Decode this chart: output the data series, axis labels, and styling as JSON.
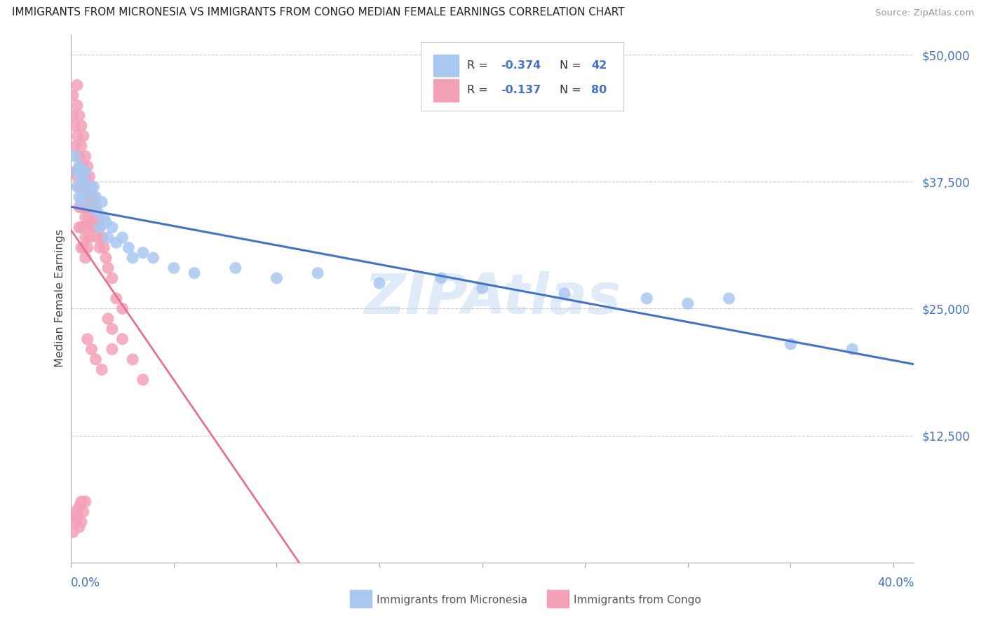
{
  "title": "IMMIGRANTS FROM MICRONESIA VS IMMIGRANTS FROM CONGO MEDIAN FEMALE EARNINGS CORRELATION CHART",
  "source": "Source: ZipAtlas.com",
  "ylabel": "Median Female Earnings",
  "xlim": [
    0,
    0.41
  ],
  "ylim": [
    0,
    52000
  ],
  "yticks": [
    0,
    12500,
    25000,
    37500,
    50000
  ],
  "ytick_labels": [
    "",
    "$12,500",
    "$25,000",
    "$37,500",
    "$50,000"
  ],
  "micronesia_color": "#a8c8f0",
  "congo_color": "#f4a0b8",
  "micro_line_color": "#4472c4",
  "congo_line_color": "#e87090",
  "watermark": "ZIPAtlas",
  "micro_x": [
    0.002,
    0.003,
    0.003,
    0.004,
    0.004,
    0.005,
    0.005,
    0.006,
    0.006,
    0.007,
    0.008,
    0.009,
    0.01,
    0.011,
    0.012,
    0.013,
    0.014,
    0.015,
    0.016,
    0.017,
    0.018,
    0.02,
    0.022,
    0.025,
    0.028,
    0.03,
    0.035,
    0.04,
    0.05,
    0.06,
    0.08,
    0.1,
    0.12,
    0.15,
    0.18,
    0.2,
    0.24,
    0.28,
    0.3,
    0.32,
    0.35,
    0.38
  ],
  "micro_y": [
    40000,
    38500,
    37000,
    39000,
    36000,
    38000,
    35500,
    37500,
    36000,
    38500,
    37000,
    36500,
    35000,
    37000,
    36000,
    34500,
    33000,
    35500,
    34000,
    33500,
    32000,
    33000,
    31500,
    32000,
    31000,
    30000,
    30500,
    30000,
    29000,
    28500,
    29000,
    28000,
    28500,
    27500,
    28000,
    27000,
    26500,
    26000,
    25500,
    26000,
    21500,
    21000
  ],
  "congo_x": [
    0.001,
    0.001,
    0.002,
    0.002,
    0.002,
    0.003,
    0.003,
    0.003,
    0.003,
    0.004,
    0.004,
    0.004,
    0.004,
    0.004,
    0.005,
    0.005,
    0.005,
    0.005,
    0.005,
    0.005,
    0.005,
    0.006,
    0.006,
    0.006,
    0.006,
    0.006,
    0.006,
    0.007,
    0.007,
    0.007,
    0.007,
    0.007,
    0.007,
    0.008,
    0.008,
    0.008,
    0.008,
    0.008,
    0.009,
    0.009,
    0.009,
    0.009,
    0.01,
    0.01,
    0.01,
    0.011,
    0.011,
    0.012,
    0.012,
    0.013,
    0.013,
    0.014,
    0.014,
    0.015,
    0.016,
    0.017,
    0.018,
    0.02,
    0.022,
    0.025,
    0.001,
    0.002,
    0.002,
    0.003,
    0.004,
    0.004,
    0.005,
    0.005,
    0.006,
    0.007,
    0.008,
    0.01,
    0.012,
    0.015,
    0.02,
    0.02,
    0.018,
    0.025,
    0.03,
    0.035
  ],
  "congo_y": [
    46000,
    44000,
    43000,
    41000,
    38500,
    47000,
    45000,
    42000,
    38000,
    44000,
    40000,
    37000,
    35000,
    33000,
    43000,
    41000,
    39000,
    37000,
    35000,
    33000,
    31000,
    42000,
    39000,
    37000,
    35000,
    33000,
    31000,
    40000,
    38000,
    36000,
    34000,
    32000,
    30000,
    39000,
    37000,
    35000,
    33000,
    31000,
    38000,
    36000,
    34000,
    32000,
    37000,
    35000,
    33000,
    36000,
    34000,
    35000,
    33000,
    34000,
    32000,
    33000,
    31000,
    32000,
    31000,
    30000,
    29000,
    28000,
    26000,
    25000,
    3000,
    4000,
    5000,
    4500,
    5500,
    3500,
    6000,
    4000,
    5000,
    6000,
    22000,
    21000,
    20000,
    19000,
    23000,
    21000,
    24000,
    22000,
    20000,
    18000
  ]
}
